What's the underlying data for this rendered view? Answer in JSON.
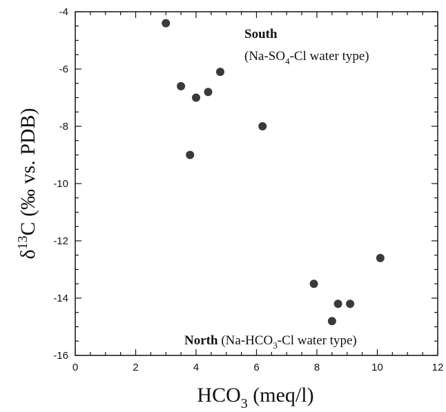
{
  "chart_data": {
    "type": "scatter",
    "xlabel": {
      "main": "HCO",
      "sub": "3",
      "rest": " (meq/l)"
    },
    "ylabel": {
      "delta": "δ",
      "sup": "13",
      "rest": "C (‰ vs. PDB)"
    },
    "xlim": [
      0,
      12
    ],
    "ylim": [
      -16,
      -4
    ],
    "x_ticks": [
      0,
      2,
      4,
      6,
      8,
      10,
      12
    ],
    "y_ticks": [
      -16,
      -14,
      -12,
      -10,
      -8,
      -6,
      -4
    ],
    "x_tick_labels": [
      "0",
      "2",
      "4",
      "6",
      "8",
      "10",
      "12"
    ],
    "y_tick_labels": [
      "-16",
      "-14",
      "-12",
      "-10",
      "-8",
      "-6",
      "-4"
    ],
    "grid": false,
    "marker_color": "#3a3a3a",
    "points": [
      {
        "x": 3.0,
        "y": -4.4
      },
      {
        "x": 3.5,
        "y": -6.6
      },
      {
        "x": 4.0,
        "y": -7.0
      },
      {
        "x": 4.4,
        "y": -6.8
      },
      {
        "x": 4.8,
        "y": -6.1
      },
      {
        "x": 3.8,
        "y": -9.0
      },
      {
        "x": 6.2,
        "y": -8.0
      },
      {
        "x": 7.9,
        "y": -13.5
      },
      {
        "x": 8.7,
        "y": -14.2
      },
      {
        "x": 9.1,
        "y": -14.2
      },
      {
        "x": 8.5,
        "y": -14.8
      },
      {
        "x": 10.1,
        "y": -12.6
      }
    ],
    "annotations": {
      "south": {
        "bold": "South",
        "pre": "(Na-SO",
        "sub": "4",
        "post": "-Cl water type)"
      },
      "north": {
        "bold": "North",
        "pre": " (Na-HCO",
        "sub": "3",
        "post": "-Cl water type)"
      }
    }
  }
}
